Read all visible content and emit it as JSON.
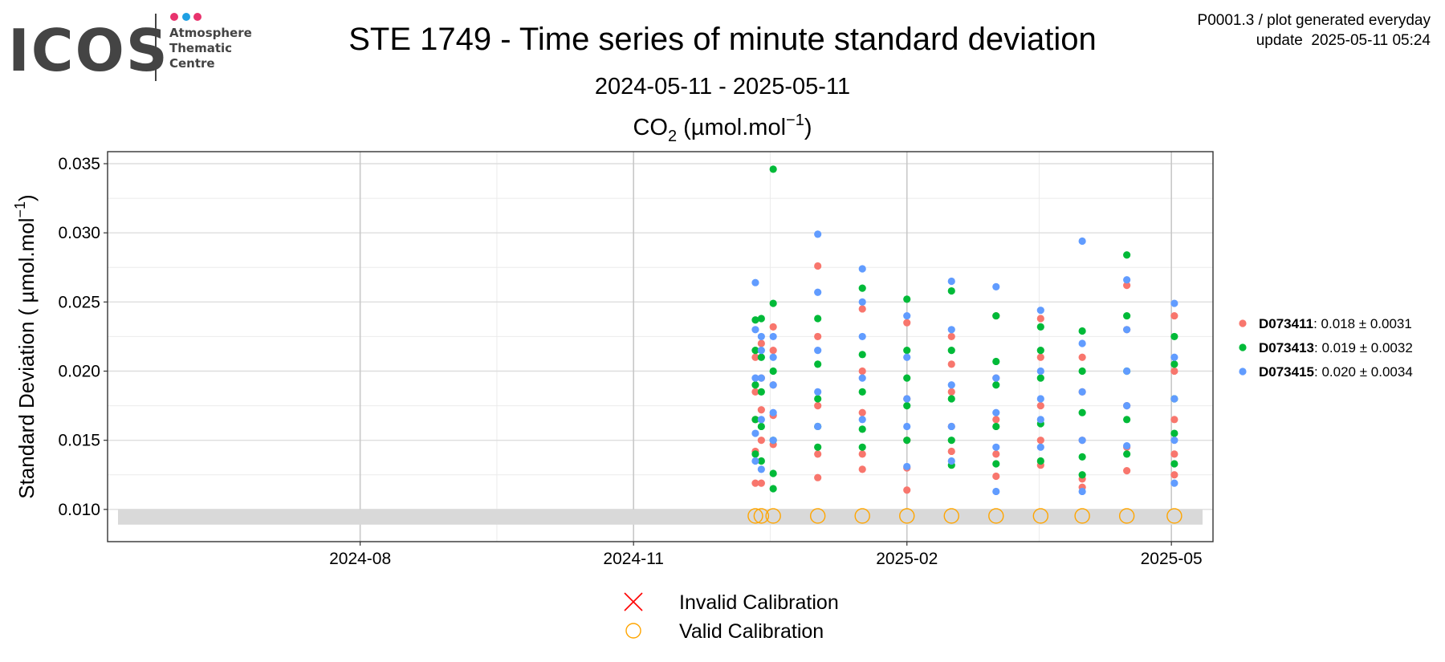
{
  "chart_data": {
    "type": "scatter",
    "logo": {
      "text": "ICOS",
      "lines": [
        "Atmosphere",
        "Thematic",
        "Centre"
      ]
    },
    "info": [
      "P0001.3 / plot generated everyday",
      "update  2025-05-11 05:24"
    ],
    "title": "STE 1749 - Time series of minute standard deviation",
    "subtitle": "2024-05-11 - 2025-05-11",
    "panel_title": {
      "main": "CO",
      "sub": "2",
      "rest": " (µmol.mol",
      "sup": "−1",
      "end": ")"
    },
    "y_label": {
      "main": "Standard Deviation ( µmol.mol",
      "sup": "−1",
      "end": ")"
    },
    "xlim": [
      "2024-05-08",
      "2025-05-15"
    ],
    "xticks": [
      "2024-08",
      "2024-11",
      "2025-02",
      "2025-05"
    ],
    "ylim": [
      0.00767,
      0.03587
    ],
    "yticks": [
      {
        "value": 0.01,
        "label": "0.010"
      },
      0.015,
      {
        "value": 0.02,
        "label": "0.020"
      },
      0.025,
      {
        "value": 0.03,
        "label": "0.030"
      },
      0.035
    ],
    "grid": true,
    "band": [
      0.0089,
      0.01
    ],
    "legend_position": "right",
    "series": [
      {
        "name": "D073411",
        "stats": ": 0.018 ± 0.0031",
        "color": "#f8766d",
        "x": [
          "2024-12-12",
          "2024-12-12",
          "2024-12-12",
          "2024-12-12",
          "2024-12-12",
          "2024-12-14",
          "2024-12-14",
          "2024-12-14",
          "2024-12-14",
          "2024-12-14",
          "2024-12-18",
          "2024-12-18",
          "2024-12-18",
          "2024-12-18",
          "2024-12-18",
          "2025-01-02",
          "2025-01-02",
          "2025-01-02",
          "2025-01-02",
          "2025-01-02",
          "2025-01-17",
          "2025-01-17",
          "2025-01-17",
          "2025-01-17",
          "2025-01-17",
          "2025-02-01",
          "2025-02-01",
          "2025-02-01",
          "2025-02-01",
          "2025-02-01",
          "2025-02-16",
          "2025-02-16",
          "2025-02-16",
          "2025-02-16",
          "2025-02-16",
          "2025-03-03",
          "2025-03-03",
          "2025-03-03",
          "2025-03-03",
          "2025-03-03",
          "2025-03-18",
          "2025-03-18",
          "2025-03-18",
          "2025-03-18",
          "2025-03-18",
          "2025-04-01",
          "2025-04-01",
          "2025-04-01",
          "2025-04-01",
          "2025-04-01",
          "2025-04-16",
          "2025-04-16",
          "2025-04-16",
          "2025-04-16",
          "2025-04-16",
          "2025-05-02",
          "2025-05-02",
          "2025-05-02",
          "2025-05-02",
          "2025-05-02"
        ],
        "values": [
          0.0119,
          0.0142,
          0.0165,
          0.0185,
          0.021,
          0.0119,
          0.015,
          0.0172,
          0.0195,
          0.022,
          0.0147,
          0.0168,
          0.019,
          0.0215,
          0.0232,
          0.0123,
          0.014,
          0.0175,
          0.0225,
          0.0276,
          0.0129,
          0.014,
          0.017,
          0.02,
          0.0245,
          0.0114,
          0.013,
          0.015,
          0.018,
          0.0235,
          0.0142,
          0.016,
          0.0185,
          0.0205,
          0.0225,
          0.0124,
          0.014,
          0.0165,
          0.0195,
          0.024,
          0.0132,
          0.015,
          0.0175,
          0.021,
          0.0238,
          0.0116,
          0.0122,
          0.015,
          0.0185,
          0.021,
          0.0128,
          0.0145,
          0.0175,
          0.023,
          0.0262,
          0.0125,
          0.014,
          0.0165,
          0.02,
          0.024
        ]
      },
      {
        "name": "D073413",
        "stats": ": 0.019 ± 0.0032",
        "color": "#00ba38",
        "x": [
          "2024-12-12",
          "2024-12-12",
          "2024-12-12",
          "2024-12-12",
          "2024-12-12",
          "2024-12-14",
          "2024-12-14",
          "2024-12-14",
          "2024-12-14",
          "2024-12-14",
          "2024-12-18",
          "2024-12-18",
          "2024-12-18",
          "2024-12-18",
          "2024-12-18",
          "2024-12-18",
          "2025-01-02",
          "2025-01-02",
          "2025-01-02",
          "2025-01-02",
          "2025-01-02",
          "2025-01-17",
          "2025-01-17",
          "2025-01-17",
          "2025-01-17",
          "2025-01-17",
          "2025-02-01",
          "2025-02-01",
          "2025-02-01",
          "2025-02-01",
          "2025-02-01",
          "2025-02-16",
          "2025-02-16",
          "2025-02-16",
          "2025-02-16",
          "2025-02-16",
          "2025-03-03",
          "2025-03-03",
          "2025-03-03",
          "2025-03-03",
          "2025-03-03",
          "2025-03-18",
          "2025-03-18",
          "2025-03-18",
          "2025-03-18",
          "2025-03-18",
          "2025-04-01",
          "2025-04-01",
          "2025-04-01",
          "2025-04-01",
          "2025-04-01",
          "2025-04-16",
          "2025-04-16",
          "2025-04-16",
          "2025-04-16",
          "2025-04-16",
          "2025-05-02",
          "2025-05-02",
          "2025-05-02",
          "2025-05-02",
          "2025-05-02"
        ],
        "values": [
          0.014,
          0.0165,
          0.019,
          0.0215,
          0.0237,
          0.0135,
          0.016,
          0.0185,
          0.021,
          0.0238,
          0.0115,
          0.0126,
          0.015,
          0.02,
          0.0249,
          0.0346,
          0.0145,
          0.016,
          0.018,
          0.0205,
          0.0238,
          0.0145,
          0.0158,
          0.0185,
          0.0212,
          0.026,
          0.015,
          0.0175,
          0.0195,
          0.0215,
          0.0252,
          0.0132,
          0.015,
          0.018,
          0.0215,
          0.0258,
          0.0133,
          0.016,
          0.019,
          0.0207,
          0.024,
          0.0135,
          0.0162,
          0.0195,
          0.0215,
          0.0232,
          0.0125,
          0.0138,
          0.017,
          0.02,
          0.0229,
          0.014,
          0.0165,
          0.02,
          0.024,
          0.0284,
          0.0133,
          0.0155,
          0.018,
          0.0205,
          0.0225
        ]
      },
      {
        "name": "D073415",
        "stats": ": 0.020 ± 0.0034",
        "color": "#619cff",
        "x": [
          "2024-12-12",
          "2024-12-12",
          "2024-12-12",
          "2024-12-12",
          "2024-12-12",
          "2024-12-14",
          "2024-12-14",
          "2024-12-14",
          "2024-12-14",
          "2024-12-14",
          "2024-12-18",
          "2024-12-18",
          "2024-12-18",
          "2024-12-18",
          "2024-12-18",
          "2025-01-02",
          "2025-01-02",
          "2025-01-02",
          "2025-01-02",
          "2025-01-02",
          "2025-01-17",
          "2025-01-17",
          "2025-01-17",
          "2025-01-17",
          "2025-01-17",
          "2025-02-01",
          "2025-02-01",
          "2025-02-01",
          "2025-02-01",
          "2025-02-01",
          "2025-02-16",
          "2025-02-16",
          "2025-02-16",
          "2025-02-16",
          "2025-02-16",
          "2025-03-03",
          "2025-03-03",
          "2025-03-03",
          "2025-03-03",
          "2025-03-03",
          "2025-03-18",
          "2025-03-18",
          "2025-03-18",
          "2025-03-18",
          "2025-03-18",
          "2025-04-01",
          "2025-04-01",
          "2025-04-01",
          "2025-04-01",
          "2025-04-01",
          "2025-04-16",
          "2025-04-16",
          "2025-04-16",
          "2025-04-16",
          "2025-04-16",
          "2025-05-02",
          "2025-05-02",
          "2025-05-02",
          "2025-05-02",
          "2025-05-02"
        ],
        "values": [
          0.0135,
          0.0155,
          0.0195,
          0.023,
          0.0264,
          0.0129,
          0.0165,
          0.0195,
          0.0215,
          0.0225,
          0.015,
          0.017,
          0.019,
          0.021,
          0.0225,
          0.016,
          0.0185,
          0.0215,
          0.0257,
          0.0299,
          0.0165,
          0.0195,
          0.0225,
          0.025,
          0.0274,
          0.0131,
          0.016,
          0.018,
          0.021,
          0.024,
          0.0135,
          0.016,
          0.019,
          0.023,
          0.0265,
          0.0113,
          0.0145,
          0.017,
          0.0195,
          0.0261,
          0.0145,
          0.0165,
          0.018,
          0.02,
          0.0244,
          0.0113,
          0.015,
          0.0185,
          0.022,
          0.0294,
          0.0146,
          0.0175,
          0.02,
          0.023,
          0.0266,
          0.0119,
          0.015,
          0.018,
          0.021,
          0.0249
        ]
      }
    ],
    "calibrations": [
      {
        "name": "Invalid Calibration",
        "color": "#ff0000",
        "x": [],
        "values": []
      },
      {
        "name": "Valid Calibration",
        "color": "#ffa500",
        "x": [
          "2024-12-12",
          "2024-12-14",
          "2024-12-18",
          "2025-01-02",
          "2025-01-17",
          "2025-02-01",
          "2025-02-16",
          "2025-03-03",
          "2025-03-18",
          "2025-04-01",
          "2025-04-16",
          "2025-05-02"
        ],
        "values": [
          0.00953,
          0.00953,
          0.00953,
          0.00953,
          0.00953,
          0.00953,
          0.00953,
          0.00953,
          0.00953,
          0.00953,
          0.00953,
          0.00953
        ]
      }
    ]
  }
}
